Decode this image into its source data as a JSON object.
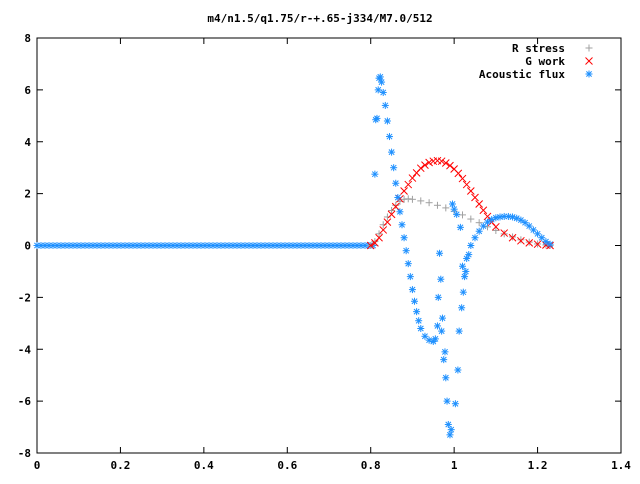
{
  "chart_data": {
    "type": "scatter",
    "title": "m4/n1.5/q1.75/r-+.65-j334/M7.0/512",
    "xlabel": "",
    "ylabel": "",
    "xlim": [
      0,
      1.4
    ],
    "ylim": [
      -8,
      8
    ],
    "x_ticks": [
      0,
      0.2,
      0.4,
      0.6,
      0.8,
      1,
      1.2,
      1.4
    ],
    "x_tick_labels": [
      "0",
      "0.2",
      "0.4",
      "0.6",
      "0.8",
      "1",
      "1.2",
      "1.4"
    ],
    "y_ticks": [
      -8,
      -6,
      -4,
      -2,
      0,
      2,
      4,
      6,
      8
    ],
    "y_tick_labels": [
      "-8",
      "-6",
      "-4",
      "-2",
      "0",
      "2",
      "4",
      "6",
      "8"
    ],
    "grid": false,
    "legend_position": "top-right",
    "series": [
      {
        "name": "R stress",
        "marker": "+",
        "color": "#a0a0a0",
        "points": [
          [
            0.8,
            0
          ],
          [
            0.81,
            0.15
          ],
          [
            0.82,
            0.45
          ],
          [
            0.83,
            0.8
          ],
          [
            0.84,
            1.1
          ],
          [
            0.85,
            1.35
          ],
          [
            0.86,
            1.55
          ],
          [
            0.87,
            1.7
          ],
          [
            0.88,
            1.78
          ],
          [
            0.89,
            1.8
          ],
          [
            0.9,
            1.78
          ],
          [
            0.92,
            1.72
          ],
          [
            0.94,
            1.65
          ],
          [
            0.96,
            1.55
          ],
          [
            0.98,
            1.45
          ],
          [
            1.0,
            1.32
          ],
          [
            1.02,
            1.18
          ],
          [
            1.04,
            1.02
          ],
          [
            1.06,
            0.88
          ],
          [
            1.08,
            0.72
          ],
          [
            1.1,
            0.58
          ],
          [
            1.12,
            0.45
          ],
          [
            1.14,
            0.33
          ],
          [
            1.16,
            0.22
          ],
          [
            1.18,
            0.13
          ],
          [
            1.2,
            0.06
          ],
          [
            1.22,
            0.02
          ],
          [
            1.23,
            0
          ]
        ]
      },
      {
        "name": "G work",
        "marker": "x",
        "color": "#ff0000",
        "points": [
          [
            0.8,
            0
          ],
          [
            0.81,
            0.1
          ],
          [
            0.82,
            0.3
          ],
          [
            0.83,
            0.6
          ],
          [
            0.84,
            0.9
          ],
          [
            0.85,
            1.2
          ],
          [
            0.86,
            1.5
          ],
          [
            0.87,
            1.8
          ],
          [
            0.88,
            2.1
          ],
          [
            0.89,
            2.35
          ],
          [
            0.9,
            2.6
          ],
          [
            0.91,
            2.8
          ],
          [
            0.92,
            2.98
          ],
          [
            0.93,
            3.1
          ],
          [
            0.94,
            3.2
          ],
          [
            0.95,
            3.25
          ],
          [
            0.96,
            3.27
          ],
          [
            0.97,
            3.25
          ],
          [
            0.98,
            3.18
          ],
          [
            0.99,
            3.08
          ],
          [
            1.0,
            2.95
          ],
          [
            1.01,
            2.78
          ],
          [
            1.02,
            2.58
          ],
          [
            1.03,
            2.35
          ],
          [
            1.04,
            2.1
          ],
          [
            1.05,
            1.85
          ],
          [
            1.06,
            1.6
          ],
          [
            1.07,
            1.36
          ],
          [
            1.08,
            1.12
          ],
          [
            1.09,
            0.9
          ],
          [
            1.1,
            0.72
          ],
          [
            1.12,
            0.48
          ],
          [
            1.14,
            0.3
          ],
          [
            1.16,
            0.18
          ],
          [
            1.18,
            0.1
          ],
          [
            1.2,
            0.05
          ],
          [
            1.22,
            0.02
          ],
          [
            1.23,
            0
          ]
        ]
      },
      {
        "name": "Acoustic flux",
        "marker": "*",
        "color": "#1e90ff",
        "points": [
          [
            0.81,
            2.75
          ],
          [
            0.812,
            4.85
          ],
          [
            0.815,
            4.9
          ],
          [
            0.818,
            6.0
          ],
          [
            0.82,
            6.45
          ],
          [
            0.823,
            6.5
          ],
          [
            0.826,
            6.3
          ],
          [
            0.83,
            5.9
          ],
          [
            0.835,
            5.4
          ],
          [
            0.84,
            4.8
          ],
          [
            0.845,
            4.2
          ],
          [
            0.85,
            3.6
          ],
          [
            0.855,
            3.0
          ],
          [
            0.86,
            2.4
          ],
          [
            0.865,
            1.85
          ],
          [
            0.87,
            1.3
          ],
          [
            0.875,
            0.8
          ],
          [
            0.88,
            0.3
          ],
          [
            0.885,
            -0.2
          ],
          [
            0.89,
            -0.7
          ],
          [
            0.895,
            -1.2
          ],
          [
            0.9,
            -1.7
          ],
          [
            0.905,
            -2.15
          ],
          [
            0.91,
            -2.55
          ],
          [
            0.915,
            -2.9
          ],
          [
            0.92,
            -3.2
          ],
          [
            0.93,
            -3.5
          ],
          [
            0.94,
            -3.65
          ],
          [
            0.95,
            -3.7
          ],
          [
            0.955,
            -3.6
          ],
          [
            0.96,
            -3.1
          ],
          [
            0.962,
            -2.0
          ],
          [
            0.965,
            -0.3
          ],
          [
            0.968,
            -1.3
          ],
          [
            0.97,
            -3.3
          ],
          [
            0.972,
            -2.8
          ],
          [
            0.975,
            -4.4
          ],
          [
            0.978,
            -4.1
          ],
          [
            0.98,
            -5.1
          ],
          [
            0.983,
            -6.0
          ],
          [
            0.986,
            -6.9
          ],
          [
            0.99,
            -7.3
          ],
          [
            0.993,
            -7.1
          ],
          [
            0.996,
            1.6
          ],
          [
            1.0,
            1.4
          ],
          [
            1.003,
            -6.1
          ],
          [
            1.006,
            1.2
          ],
          [
            1.009,
            -4.8
          ],
          [
            1.012,
            -3.3
          ],
          [
            1.015,
            0.7
          ],
          [
            1.018,
            -2.4
          ],
          [
            1.02,
            -0.8
          ],
          [
            1.022,
            -1.8
          ],
          [
            1.025,
            -1.2
          ],
          [
            1.028,
            -1.0
          ],
          [
            1.03,
            -0.5
          ],
          [
            1.035,
            -0.35
          ],
          [
            1.04,
            0
          ],
          [
            1.05,
            0.3
          ],
          [
            1.06,
            0.55
          ],
          [
            1.07,
            0.75
          ],
          [
            1.08,
            0.9
          ],
          [
            1.09,
            1.0
          ],
          [
            1.1,
            1.07
          ],
          [
            1.11,
            1.1
          ],
          [
            1.12,
            1.12
          ],
          [
            1.13,
            1.12
          ],
          [
            1.14,
            1.1
          ],
          [
            1.15,
            1.05
          ],
          [
            1.16,
            0.98
          ],
          [
            1.17,
            0.88
          ],
          [
            1.18,
            0.75
          ],
          [
            1.19,
            0.6
          ],
          [
            1.2,
            0.45
          ],
          [
            1.21,
            0.3
          ],
          [
            1.22,
            0.15
          ],
          [
            1.23,
            0.05
          ]
        ]
      }
    ],
    "baseline": {
      "series_index": 2,
      "x_from": 0,
      "x_to": 0.81,
      "y": 0
    }
  }
}
